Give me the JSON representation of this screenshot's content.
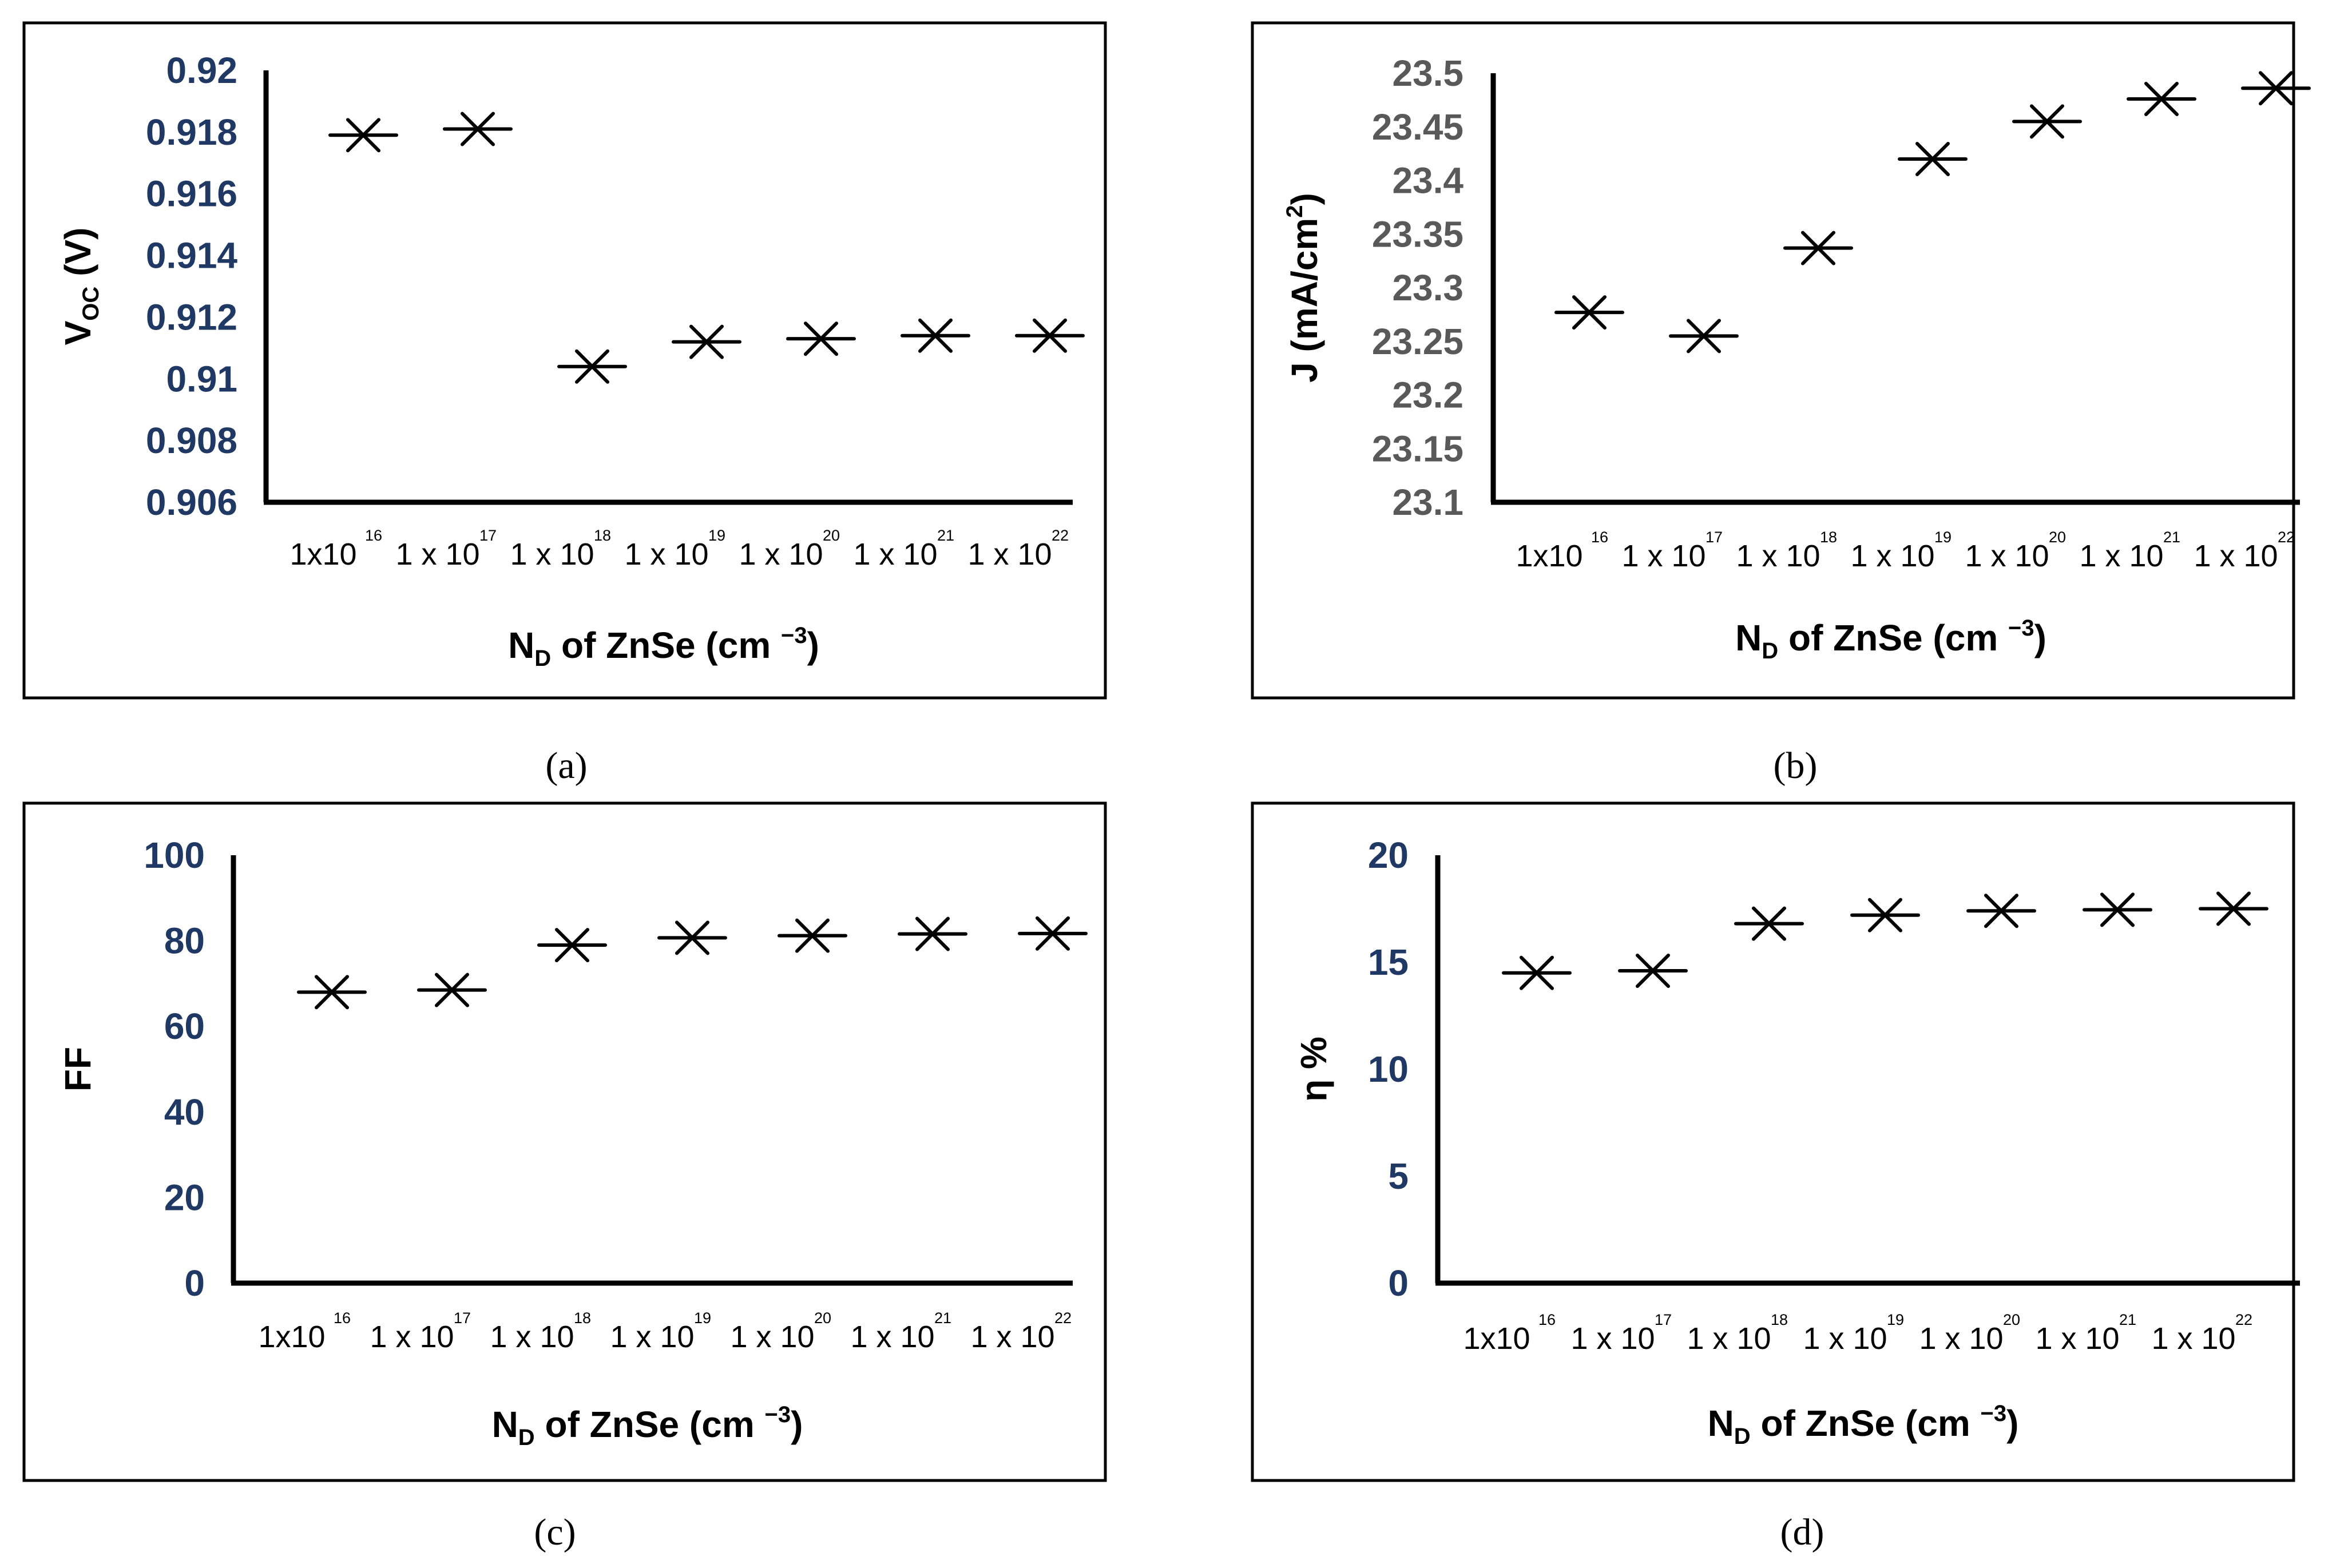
{
  "colors": {
    "tick_label_a": "#1f3864",
    "tick_label_b": "#595959",
    "axis": "#000000",
    "marker": "#000000",
    "frame": "#000000"
  },
  "chart_data": [
    {
      "panel": "a",
      "caption": "(a)",
      "type": "scatter",
      "categories": [
        "1x10^16",
        "1 x 10^17",
        "1 x 10^18",
        "1 x 10^19",
        "1 x 10^20",
        "1 x 10^21",
        "1 x 10^22"
      ],
      "tick_labels": [
        {
          "base": "1x10",
          "exp": "16"
        },
        {
          "base": "1 x 10",
          "exp": "17"
        },
        {
          "base": "1 x 10",
          "exp": "18"
        },
        {
          "base": "1 x 10",
          "exp": "19"
        },
        {
          "base": "1 x 10",
          "exp": "20"
        },
        {
          "base": "1 x 10",
          "exp": "21"
        },
        {
          "base": "1 x 10",
          "exp": "22"
        }
      ],
      "values": [
        0.9179,
        0.9181,
        0.9104,
        0.9112,
        0.9113,
        0.9114,
        0.9114
      ],
      "ylim": [
        0.906,
        0.92
      ],
      "yticks": [
        "0.906",
        "0.908",
        "0.91",
        "0.912",
        "0.914",
        "0.916",
        "0.918",
        "0.92"
      ],
      "ylabel": {
        "main": "V",
        "sub": "OC",
        "rest": " (V)"
      },
      "xlabel": {
        "main": "N",
        "sub": "D",
        "mid": " of ZnSe (cm ",
        "sup": "−3",
        "end": ")"
      },
      "marker": "x-with-bar",
      "grid": false
    },
    {
      "panel": "b",
      "caption": "(b)",
      "type": "scatter",
      "categories": [
        "1x10^16",
        "1 x 10^17",
        "1 x 10^18",
        "1 x 10^19",
        "1 x 10^20",
        "1 x 10^21",
        "1 x 10^22"
      ],
      "tick_labels": [
        {
          "base": "1x10",
          "exp": "16"
        },
        {
          "base": "1 x 10",
          "exp": "17"
        },
        {
          "base": "1 x 10",
          "exp": "18"
        },
        {
          "base": "1 x 10",
          "exp": "19"
        },
        {
          "base": "1 x 10",
          "exp": "20"
        },
        {
          "base": "1 x 10",
          "exp": "21"
        },
        {
          "base": "1 x 10",
          "exp": "22"
        }
      ],
      "values": [
        23.277,
        23.255,
        23.337,
        23.42,
        23.455,
        23.476,
        23.486
      ],
      "ylim": [
        23.1,
        23.5
      ],
      "yticks": [
        "23.1",
        "23.15",
        "23.2",
        "23.25",
        "23.3",
        "23.35",
        "23.4",
        "23.45",
        "23.5"
      ],
      "ylabel": {
        "main": "J (mA/cm",
        "sup": "2",
        "rest": ")"
      },
      "xlabel": {
        "main": "N",
        "sub": "D",
        "mid": " of ZnSe (cm ",
        "sup": "−3",
        "end": ")"
      },
      "marker": "x-with-bar",
      "grid": false
    },
    {
      "panel": "c",
      "caption": "(c)",
      "type": "scatter",
      "categories": [
        "1x10^16",
        "1 x 10^17",
        "1 x 10^18",
        "1 x 10^19",
        "1 x 10^20",
        "1 x 10^21",
        "1 x 10^22"
      ],
      "tick_labels": [
        {
          "base": "1x10",
          "exp": "16"
        },
        {
          "base": "1 x 10",
          "exp": "17"
        },
        {
          "base": "1 x 10",
          "exp": "18"
        },
        {
          "base": "1 x 10",
          "exp": "19"
        },
        {
          "base": "1 x 10",
          "exp": "20"
        },
        {
          "base": "1 x 10",
          "exp": "21"
        },
        {
          "base": "1 x 10",
          "exp": "22"
        }
      ],
      "values": [
        68,
        68.5,
        79,
        80.7,
        81.2,
        81.6,
        81.7
      ],
      "ylim": [
        0,
        100
      ],
      "yticks": [
        "0",
        "20",
        "40",
        "60",
        "80",
        "100"
      ],
      "ylabel": {
        "main": "FF"
      },
      "xlabel": {
        "main": "N",
        "sub": "D",
        "mid": " of ZnSe (cm ",
        "sup": "−3",
        "end": ")"
      },
      "marker": "x-with-bar",
      "grid": false
    },
    {
      "panel": "d",
      "caption": "(d)",
      "type": "scatter",
      "categories": [
        "1x10^16",
        "1 x 10^17",
        "1 x 10^18",
        "1 x 10^19",
        "1 x 10^20",
        "1 x 10^21",
        "1 x 10^22"
      ],
      "tick_labels": [
        {
          "base": "1x10",
          "exp": "16"
        },
        {
          "base": "1 x 10",
          "exp": "17"
        },
        {
          "base": "1 x 10",
          "exp": "18"
        },
        {
          "base": "1 x 10",
          "exp": "19"
        },
        {
          "base": "1 x 10",
          "exp": "20"
        },
        {
          "base": "1 x 10",
          "exp": "21"
        },
        {
          "base": "1 x 10",
          "exp": "22"
        }
      ],
      "values": [
        14.5,
        14.6,
        16.8,
        17.2,
        17.4,
        17.45,
        17.5
      ],
      "ylim": [
        0,
        20
      ],
      "yticks": [
        "0",
        "5",
        "10",
        "15",
        "20"
      ],
      "ylabel": {
        "main": "η %"
      },
      "xlabel": {
        "main": "N",
        "sub": "D",
        "mid": " of ZnSe (cm ",
        "sup": "−3",
        "end": ")"
      },
      "marker": "x-with-bar",
      "grid": false
    }
  ]
}
